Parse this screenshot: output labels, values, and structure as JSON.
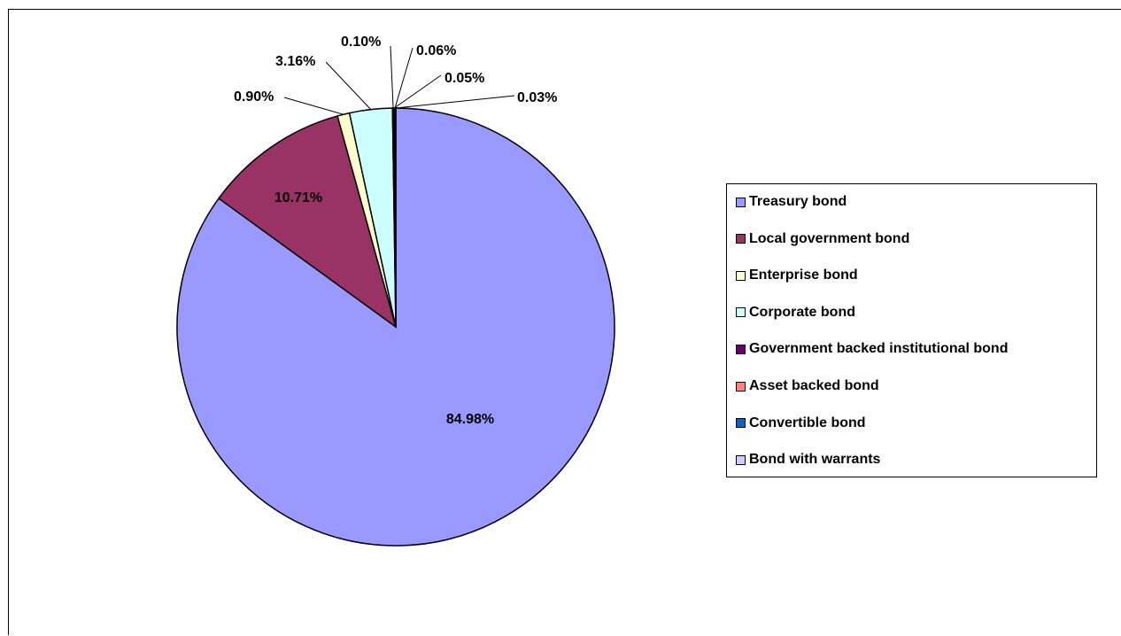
{
  "chart_data": {
    "type": "pie",
    "title": "",
    "categories": [
      "Treasury bond",
      "Local government bond",
      "Enterprise bond",
      "Corporate bond",
      "Government backed institutional bond",
      "Asset backed bond",
      "Convertible bond",
      "Bond with warrants"
    ],
    "values": [
      84.98,
      10.71,
      0.9,
      3.16,
      0.1,
      0.05,
      0.06,
      0.03
    ],
    "labels": [
      "84.98%",
      "10.71%",
      "0.90%",
      "3.16%",
      "0.10%",
      "0.05%",
      "0.06%",
      "0.03%"
    ],
    "colors": [
      "#9999FF",
      "#993366",
      "#FFFFCC",
      "#CCFFFF",
      "#660066",
      "#FF8080",
      "#0066CC",
      "#CCCCFF"
    ],
    "legend_position": "right"
  }
}
